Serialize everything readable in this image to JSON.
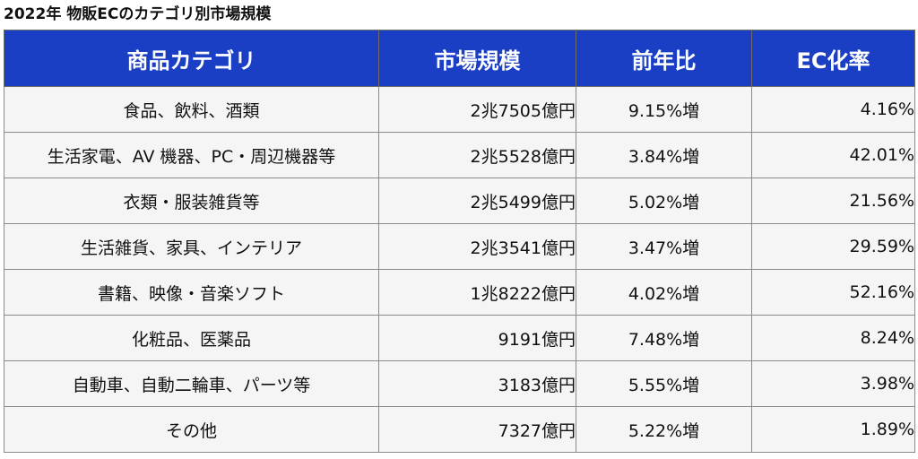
{
  "title": "2022年 物販ECのカテゴリ別市場規模",
  "table": {
    "headers": [
      "商品カテゴリ",
      "市場規模",
      "前年比",
      "EC化率"
    ],
    "rows": [
      {
        "category": "食品、飲料、酒類",
        "market_size": "2兆7505億円",
        "yoy": "9.15%増",
        "ec_rate": "4.16%"
      },
      {
        "category": "生活家電、AV 機器、PC・周辺機器等",
        "market_size": "2兆5528億円",
        "yoy": "3.84%増",
        "ec_rate": "42.01%"
      },
      {
        "category": "衣類・服装雑貨等",
        "market_size": "2兆5499億円",
        "yoy": "5.02%増",
        "ec_rate": "21.56%"
      },
      {
        "category": "生活雑貨、家具、インテリア",
        "market_size": "2兆3541億円",
        "yoy": "3.47%増",
        "ec_rate": "29.59%"
      },
      {
        "category": "書籍、映像・音楽ソフト",
        "market_size": "1兆8222億円",
        "yoy": "4.02%増",
        "ec_rate": "52.16%"
      },
      {
        "category": "化粧品、医薬品",
        "market_size": "9191億円",
        "yoy": "7.48%増",
        "ec_rate": "8.24%"
      },
      {
        "category": "自動車、自動二輪車、パーツ等",
        "market_size": "3183億円",
        "yoy": "5.55%増",
        "ec_rate": "3.98%"
      },
      {
        "category": "その他",
        "market_size": "7327億円",
        "yoy": "5.22%増",
        "ec_rate": "1.89%"
      }
    ]
  },
  "colors": {
    "header_background": "#1b3fc4",
    "header_text": "#ffffff",
    "row_background": "#f5f5f5",
    "border": "#8a8a8a"
  }
}
